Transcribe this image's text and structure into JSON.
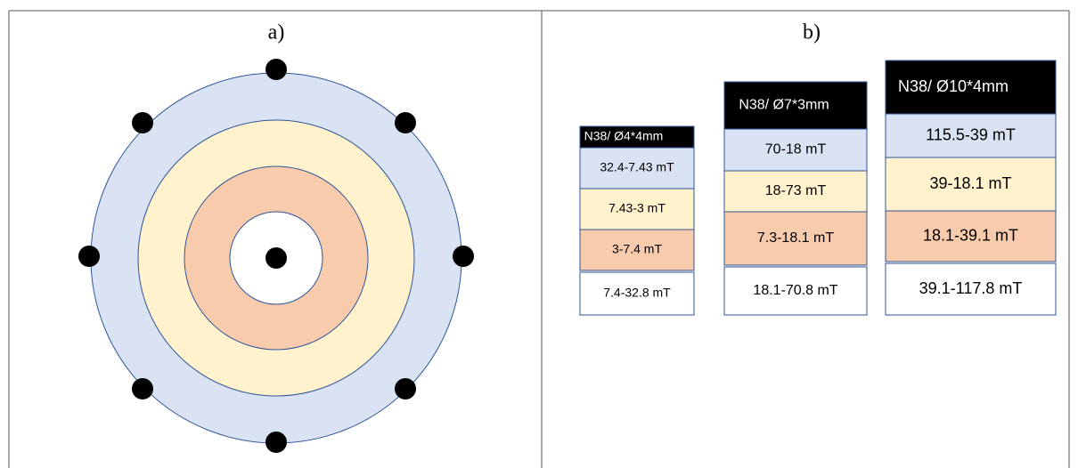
{
  "panels": [
    {
      "label": "a)"
    },
    {
      "label": "b)"
    }
  ],
  "tables": [
    {
      "header": "N38/ Ø4*4mm",
      "rows": [
        "32.4-7.43 mT",
        "7.43-3 mT",
        "3-7.4 mT",
        "7.4-32.8 mT"
      ]
    },
    {
      "header": "N38/ Ø7*3mm",
      "rows": [
        "70-18 mT",
        "18-73 mT",
        "7.3-18.1 mT",
        "18.1-70.8 mT"
      ]
    },
    {
      "header": "N38/ Ø10*4mm",
      "rows": [
        "115.5-39 mT",
        "39-18.1 mT",
        "18.1-39.1 mT",
        "39.1-117.8 mT"
      ]
    }
  ]
}
